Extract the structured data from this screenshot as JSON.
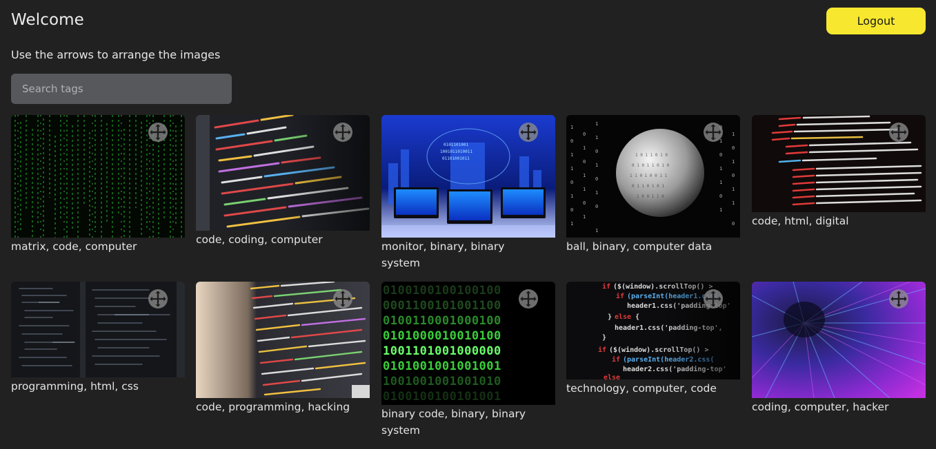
{
  "header": {
    "title": "Welcome",
    "logout_label": "Logout",
    "subtitle": "Use the arrows to arrange the images"
  },
  "search": {
    "placeholder": "Search tags",
    "value": ""
  },
  "colors": {
    "background": "#212121",
    "accent": "#f7e82f",
    "search_bg": "#56585c"
  },
  "cards": [
    {
      "tags": "matrix, code, computer",
      "icon": "move-arrows-icon"
    },
    {
      "tags": "code, coding, computer",
      "icon": "move-arrows-icon"
    },
    {
      "tags": "monitor, binary, binary system",
      "icon": "move-arrows-icon"
    },
    {
      "tags": "ball, binary, computer data",
      "icon": "move-arrows-icon"
    },
    {
      "tags": "code, html, digital",
      "icon": "move-arrows-icon"
    },
    {
      "tags": "programming, html, css",
      "icon": "move-arrows-icon"
    },
    {
      "tags": "code, programming, hacking",
      "icon": "move-arrows-icon"
    },
    {
      "tags": "binary code, binary, binary system",
      "icon": "move-arrows-icon"
    },
    {
      "tags": "technology, computer, code",
      "icon": "move-arrows-icon"
    },
    {
      "tags": "coding, computer, hacker",
      "icon": "move-arrows-icon"
    }
  ]
}
